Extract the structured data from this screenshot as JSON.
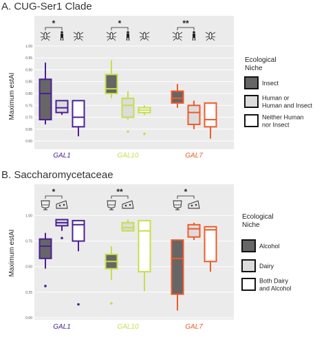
{
  "colors": {
    "GAL1": "#4b1f94",
    "GAL10": "#c5df4a",
    "GAL7": "#ef5a2a",
    "fill_dark": "#666666",
    "fill_light": "#dcdcdc",
    "fill_white": "#ffffff",
    "panel_bg": "#ebebeb",
    "grid": "#ffffff"
  },
  "chart_data": [
    {
      "type": "boxplot",
      "title": "A. CUG-Ser1 Clade",
      "xlabel": "",
      "ylabel": "Maximum estAI",
      "ylim": [
        0.58,
        1.02
      ],
      "yticks": [
        "0.60",
        "0.65",
        "0.70",
        "0.75",
        "0.80",
        "0.85",
        "0.90",
        "0.95",
        "1.00"
      ],
      "yticks_values": [
        0.6,
        0.65,
        0.7,
        0.75,
        0.8,
        0.85,
        0.9,
        0.95,
        1.0
      ],
      "categories": [
        "GAL1",
        "GAL10",
        "GAL7"
      ],
      "legend": {
        "title": "Ecological Niche",
        "position": "right",
        "entries": [
          "Insect",
          "Human or Human and Insect",
          "Neither Human nor Insect"
        ],
        "entry_lines": [
          [
            "Insect"
          ],
          [
            "Human or",
            "Human and Insect"
          ],
          [
            "Neither Human",
            "nor Insect"
          ]
        ]
      },
      "significance": [
        "*",
        "*",
        "**"
      ],
      "icon_names": [
        "insect-icon",
        "person-icon",
        "insect-icon"
      ],
      "series": [
        {
          "name": "Insect",
          "fill": "dark",
          "stats": [
            {
              "whislo": 0.67,
              "q1": 0.69,
              "med": 0.8,
              "q3": 0.86,
              "whishi": 0.93,
              "outliers": []
            },
            {
              "whislo": 0.78,
              "q1": 0.8,
              "med": 0.82,
              "q3": 0.88,
              "whishi": 0.94,
              "outliers": []
            },
            {
              "whislo": 0.74,
              "q1": 0.76,
              "med": 0.78,
              "q3": 0.81,
              "whishi": 0.84,
              "outliers": []
            }
          ]
        },
        {
          "name": "Human or Human and Insect",
          "fill": "light",
          "stats": [
            {
              "whislo": 0.71,
              "q1": 0.72,
              "med": 0.74,
              "q3": 0.77,
              "whishi": 0.77,
              "outliers": []
            },
            {
              "whislo": 0.69,
              "q1": 0.7,
              "med": 0.75,
              "q3": 0.78,
              "whishi": 0.81,
              "outliers": [
                0.64
              ]
            },
            {
              "whislo": 0.65,
              "q1": 0.67,
              "med": 0.72,
              "q3": 0.75,
              "whishi": 0.77,
              "outliers": []
            }
          ]
        },
        {
          "name": "Neither Human nor Insect",
          "fill": "white",
          "stats": [
            {
              "whislo": 0.62,
              "q1": 0.66,
              "med": 0.7,
              "q3": 0.77,
              "whishi": 0.77,
              "outliers": []
            },
            {
              "whislo": 0.71,
              "q1": 0.72,
              "med": 0.73,
              "q3": 0.74,
              "whishi": 0.75,
              "outliers": [
                0.63
              ]
            },
            {
              "whislo": 0.61,
              "q1": 0.66,
              "med": 0.69,
              "q3": 0.76,
              "whishi": 0.76,
              "outliers": []
            }
          ]
        }
      ]
    },
    {
      "type": "boxplot",
      "title": "B. Saccharomycetaceae",
      "xlabel": "",
      "ylabel": "Maximum estAI",
      "ylim": [
        0.0,
        1.05
      ],
      "yticks": [
        "0.00",
        "0.25",
        "0.50",
        "0.75",
        "1.00"
      ],
      "yticks_values": [
        0.0,
        0.25,
        0.5,
        0.75,
        1.0
      ],
      "categories": [
        "GAL1",
        "GAL10",
        "GAL7"
      ],
      "legend": {
        "title": "Ecological Niche",
        "position": "right",
        "entries": [
          "Alcohol",
          "Dairy",
          "Both Dairy and Alcohol"
        ],
        "entry_lines": [
          [
            "Alcohol"
          ],
          [
            "Dairy"
          ],
          [
            "Both Dairy",
            "and Alcohol"
          ]
        ]
      },
      "significance": [
        "*",
        "**",
        "*"
      ],
      "icon_names": [
        "wine-glass-icon",
        "cheese-icon"
      ],
      "series": [
        {
          "name": "Alcohol",
          "fill": "dark",
          "stats": [
            {
              "whislo": 0.48,
              "q1": 0.58,
              "med": 0.7,
              "q3": 0.77,
              "whishi": 0.83,
              "outliers": [
                0.31
              ]
            },
            {
              "whislo": 0.37,
              "q1": 0.48,
              "med": 0.55,
              "q3": 0.62,
              "whishi": 0.7,
              "outliers": [
                0.14
              ]
            },
            {
              "whislo": 0.07,
              "q1": 0.23,
              "med": 0.58,
              "q3": 0.76,
              "whishi": 0.76,
              "outliers": []
            }
          ]
        },
        {
          "name": "Dairy",
          "fill": "light",
          "stats": [
            {
              "whislo": 0.85,
              "q1": 0.9,
              "med": 0.93,
              "q3": 0.96,
              "whishi": 0.96,
              "outliers": [
                0.78
              ]
            },
            {
              "whislo": 0.84,
              "q1": 0.85,
              "med": 0.88,
              "q3": 0.93,
              "whishi": 0.96,
              "outliers": []
            },
            {
              "whislo": 0.76,
              "q1": 0.79,
              "med": 0.87,
              "q3": 0.91,
              "whishi": 0.93,
              "outliers": []
            }
          ]
        },
        {
          "name": "Both Dairy and Alcohol",
          "fill": "white",
          "stats": [
            {
              "whislo": 0.65,
              "q1": 0.75,
              "med": 0.91,
              "q3": 0.95,
              "whishi": 0.95,
              "outliers": [
                0.13
              ]
            },
            {
              "whislo": 0.26,
              "q1": 0.45,
              "med": 0.85,
              "q3": 0.95,
              "whishi": 0.95,
              "outliers": []
            },
            {
              "whislo": 0.45,
              "q1": 0.55,
              "med": 0.86,
              "q3": 0.89,
              "whishi": 0.89,
              "outliers": []
            }
          ]
        }
      ]
    }
  ]
}
